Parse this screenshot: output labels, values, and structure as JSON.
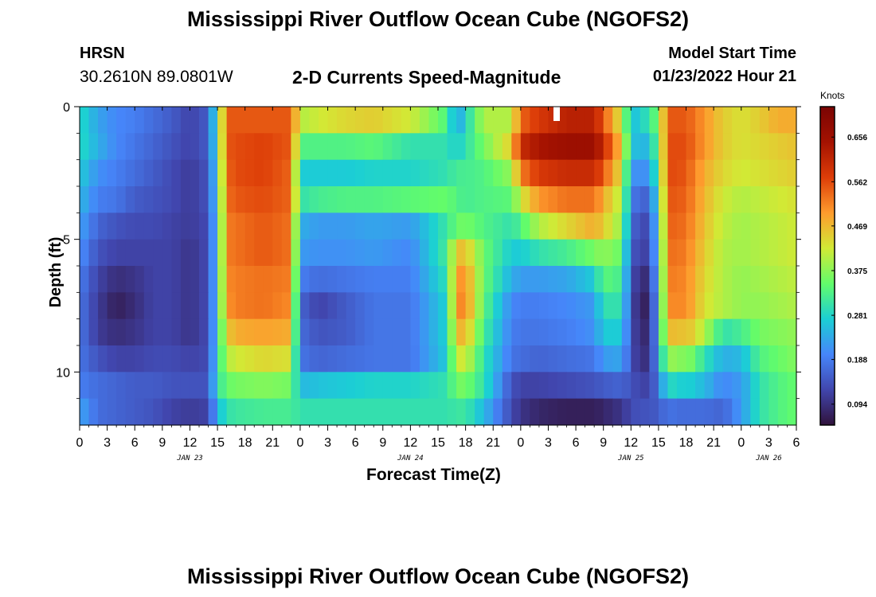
{
  "header": {
    "title": "Mississippi River Outflow Ocean Cube (NGOFS2)",
    "station": "HRSN",
    "coords": "30.2610N  89.0801W",
    "subtitle": "2-D Currents Speed-Magnitude",
    "model_start_label": "Model Start Time",
    "model_start_value": "01/23/2022 Hour 21"
  },
  "footer": {
    "title": "Mississippi River Outflow Ocean Cube (NGOFS2)"
  },
  "chart_data": {
    "type": "heatmap",
    "title": "2-D Currents Speed-Magnitude",
    "xlabel": "Forecast Time(Z)",
    "ylabel": "Depth (ft)",
    "x_ticks": [
      "0",
      "3",
      "6",
      "9",
      "12",
      "15",
      "18",
      "21",
      "0",
      "3",
      "6",
      "9",
      "12",
      "15",
      "18",
      "21",
      "0",
      "3",
      "6",
      "9",
      "12",
      "15",
      "18",
      "21",
      "0",
      "3",
      "6"
    ],
    "date_labels": [
      {
        "text": "JAN 23",
        "hour": 12
      },
      {
        "text": "JAN 24",
        "hour": 36
      },
      {
        "text": "JAN 25",
        "hour": 60
      },
      {
        "text": "JAN 26",
        "hour": 75
      }
    ],
    "x_range_hours": [
      0,
      78
    ],
    "y_ticks": [
      "0",
      "5",
      "10"
    ],
    "y_range_ft": [
      0,
      12
    ],
    "colorbar": {
      "units": "Knots",
      "ticks": [
        "0.656",
        "0.562",
        "0.469",
        "0.375",
        "0.281",
        "0.188",
        "0.094"
      ],
      "tick_values": [
        0.656,
        0.562,
        0.469,
        0.375,
        0.281,
        0.188,
        0.094
      ],
      "range": [
        0.05,
        0.72
      ],
      "colors": [
        "#30123b",
        "#4146ad",
        "#4686fa",
        "#1bcfd4",
        "#62fc6b",
        "#d2e935",
        "#fe9b2d",
        "#dd3d08",
        "#a41201",
        "#7a0403"
      ]
    },
    "row_depths_ft": [
      0.5,
      1.5,
      2.5,
      3.5,
      4.5,
      5.5,
      6.5,
      7.5,
      8.5,
      9.5,
      10.5,
      11.5
    ],
    "time_keys_hours": [
      0,
      2,
      4,
      6,
      8,
      10,
      12,
      14,
      15,
      16,
      17,
      20,
      23,
      24,
      26,
      29,
      32,
      36,
      40,
      41,
      42,
      44,
      47,
      48,
      50,
      53,
      56,
      57,
      59,
      60,
      61,
      62,
      63,
      64,
      65,
      66,
      68,
      70,
      72,
      74,
      76,
      78
    ],
    "speed_knots_rows": [
      [
        0.29,
        0.23,
        0.2,
        0.19,
        0.17,
        0.15,
        0.12,
        0.15,
        0.33,
        0.55,
        0.55,
        0.55,
        0.55,
        0.4,
        0.42,
        0.44,
        0.45,
        0.42,
        0.33,
        0.22,
        0.28,
        0.4,
        0.4,
        0.54,
        0.58,
        0.62,
        0.62,
        0.55,
        0.42,
        0.25,
        0.28,
        0.3,
        0.37,
        0.55,
        0.55,
        0.55,
        0.5,
        0.45,
        0.43,
        0.45,
        0.48,
        0.48
      ],
      [
        0.29,
        0.24,
        0.2,
        0.18,
        0.16,
        0.14,
        0.12,
        0.15,
        0.32,
        0.55,
        0.56,
        0.57,
        0.55,
        0.33,
        0.33,
        0.33,
        0.34,
        0.3,
        0.3,
        0.27,
        0.3,
        0.36,
        0.45,
        0.6,
        0.64,
        0.66,
        0.66,
        0.6,
        0.46,
        0.27,
        0.24,
        0.26,
        0.35,
        0.56,
        0.56,
        0.56,
        0.5,
        0.45,
        0.43,
        0.44,
        0.45,
        0.46
      ],
      [
        0.27,
        0.21,
        0.19,
        0.17,
        0.15,
        0.13,
        0.11,
        0.14,
        0.3,
        0.54,
        0.56,
        0.57,
        0.54,
        0.27,
        0.27,
        0.27,
        0.28,
        0.28,
        0.3,
        0.32,
        0.32,
        0.33,
        0.38,
        0.52,
        0.58,
        0.6,
        0.6,
        0.55,
        0.43,
        0.22,
        0.2,
        0.22,
        0.33,
        0.56,
        0.56,
        0.55,
        0.48,
        0.44,
        0.42,
        0.43,
        0.44,
        0.45
      ],
      [
        0.25,
        0.19,
        0.18,
        0.15,
        0.14,
        0.13,
        0.11,
        0.14,
        0.29,
        0.53,
        0.55,
        0.56,
        0.54,
        0.3,
        0.32,
        0.33,
        0.33,
        0.34,
        0.35,
        0.33,
        0.32,
        0.33,
        0.34,
        0.42,
        0.5,
        0.53,
        0.53,
        0.48,
        0.4,
        0.2,
        0.15,
        0.17,
        0.3,
        0.55,
        0.55,
        0.54,
        0.47,
        0.42,
        0.4,
        0.41,
        0.42,
        0.43
      ],
      [
        0.23,
        0.16,
        0.14,
        0.13,
        0.13,
        0.12,
        0.11,
        0.13,
        0.28,
        0.52,
        0.53,
        0.55,
        0.53,
        0.24,
        0.22,
        0.22,
        0.23,
        0.22,
        0.31,
        0.35,
        0.36,
        0.33,
        0.3,
        0.33,
        0.4,
        0.44,
        0.48,
        0.45,
        0.38,
        0.18,
        0.12,
        0.14,
        0.28,
        0.54,
        0.54,
        0.53,
        0.46,
        0.41,
        0.39,
        0.4,
        0.41,
        0.42
      ],
      [
        0.21,
        0.14,
        0.12,
        0.12,
        0.12,
        0.12,
        0.1,
        0.13,
        0.28,
        0.52,
        0.53,
        0.55,
        0.53,
        0.22,
        0.21,
        0.21,
        0.22,
        0.2,
        0.32,
        0.46,
        0.46,
        0.35,
        0.27,
        0.27,
        0.3,
        0.32,
        0.36,
        0.38,
        0.35,
        0.16,
        0.11,
        0.13,
        0.27,
        0.53,
        0.53,
        0.52,
        0.45,
        0.4,
        0.39,
        0.4,
        0.41,
        0.42
      ],
      [
        0.19,
        0.12,
        0.09,
        0.1,
        0.12,
        0.12,
        0.1,
        0.13,
        0.28,
        0.51,
        0.52,
        0.53,
        0.52,
        0.19,
        0.17,
        0.18,
        0.19,
        0.19,
        0.3,
        0.5,
        0.5,
        0.35,
        0.24,
        0.22,
        0.22,
        0.23,
        0.27,
        0.34,
        0.32,
        0.15,
        0.08,
        0.1,
        0.26,
        0.52,
        0.52,
        0.51,
        0.44,
        0.4,
        0.38,
        0.39,
        0.4,
        0.41
      ],
      [
        0.18,
        0.11,
        0.07,
        0.09,
        0.12,
        0.12,
        0.1,
        0.13,
        0.28,
        0.5,
        0.52,
        0.53,
        0.51,
        0.16,
        0.12,
        0.15,
        0.18,
        0.18,
        0.28,
        0.51,
        0.51,
        0.34,
        0.2,
        0.19,
        0.19,
        0.2,
        0.22,
        0.3,
        0.3,
        0.14,
        0.07,
        0.08,
        0.25,
        0.51,
        0.51,
        0.51,
        0.43,
        0.4,
        0.38,
        0.38,
        0.39,
        0.4
      ],
      [
        0.18,
        0.11,
        0.09,
        0.1,
        0.12,
        0.12,
        0.1,
        0.13,
        0.28,
        0.45,
        0.48,
        0.49,
        0.48,
        0.17,
        0.14,
        0.15,
        0.18,
        0.18,
        0.28,
        0.47,
        0.47,
        0.32,
        0.19,
        0.18,
        0.18,
        0.19,
        0.21,
        0.27,
        0.27,
        0.14,
        0.08,
        0.09,
        0.24,
        0.48,
        0.45,
        0.47,
        0.4,
        0.3,
        0.32,
        0.36,
        0.37,
        0.38
      ],
      [
        0.18,
        0.14,
        0.12,
        0.12,
        0.13,
        0.13,
        0.12,
        0.13,
        0.29,
        0.4,
        0.42,
        0.44,
        0.43,
        0.18,
        0.16,
        0.17,
        0.18,
        0.18,
        0.27,
        0.42,
        0.42,
        0.3,
        0.18,
        0.17,
        0.16,
        0.17,
        0.18,
        0.22,
        0.23,
        0.14,
        0.09,
        0.1,
        0.22,
        0.4,
        0.36,
        0.38,
        0.3,
        0.24,
        0.25,
        0.33,
        0.35,
        0.37
      ],
      [
        0.19,
        0.17,
        0.16,
        0.15,
        0.15,
        0.14,
        0.14,
        0.14,
        0.3,
        0.35,
        0.36,
        0.37,
        0.36,
        0.25,
        0.26,
        0.27,
        0.28,
        0.28,
        0.3,
        0.36,
        0.36,
        0.3,
        0.14,
        0.12,
        0.12,
        0.13,
        0.14,
        0.15,
        0.16,
        0.14,
        0.12,
        0.12,
        0.18,
        0.3,
        0.27,
        0.28,
        0.25,
        0.2,
        0.22,
        0.3,
        0.33,
        0.35
      ],
      [
        0.23,
        0.17,
        0.16,
        0.15,
        0.14,
        0.12,
        0.11,
        0.12,
        0.25,
        0.3,
        0.31,
        0.32,
        0.32,
        0.3,
        0.3,
        0.3,
        0.3,
        0.3,
        0.3,
        0.31,
        0.31,
        0.25,
        0.13,
        0.1,
        0.08,
        0.07,
        0.07,
        0.08,
        0.1,
        0.13,
        0.14,
        0.14,
        0.15,
        0.18,
        0.17,
        0.17,
        0.17,
        0.16,
        0.22,
        0.3,
        0.33,
        0.35
      ]
    ]
  }
}
